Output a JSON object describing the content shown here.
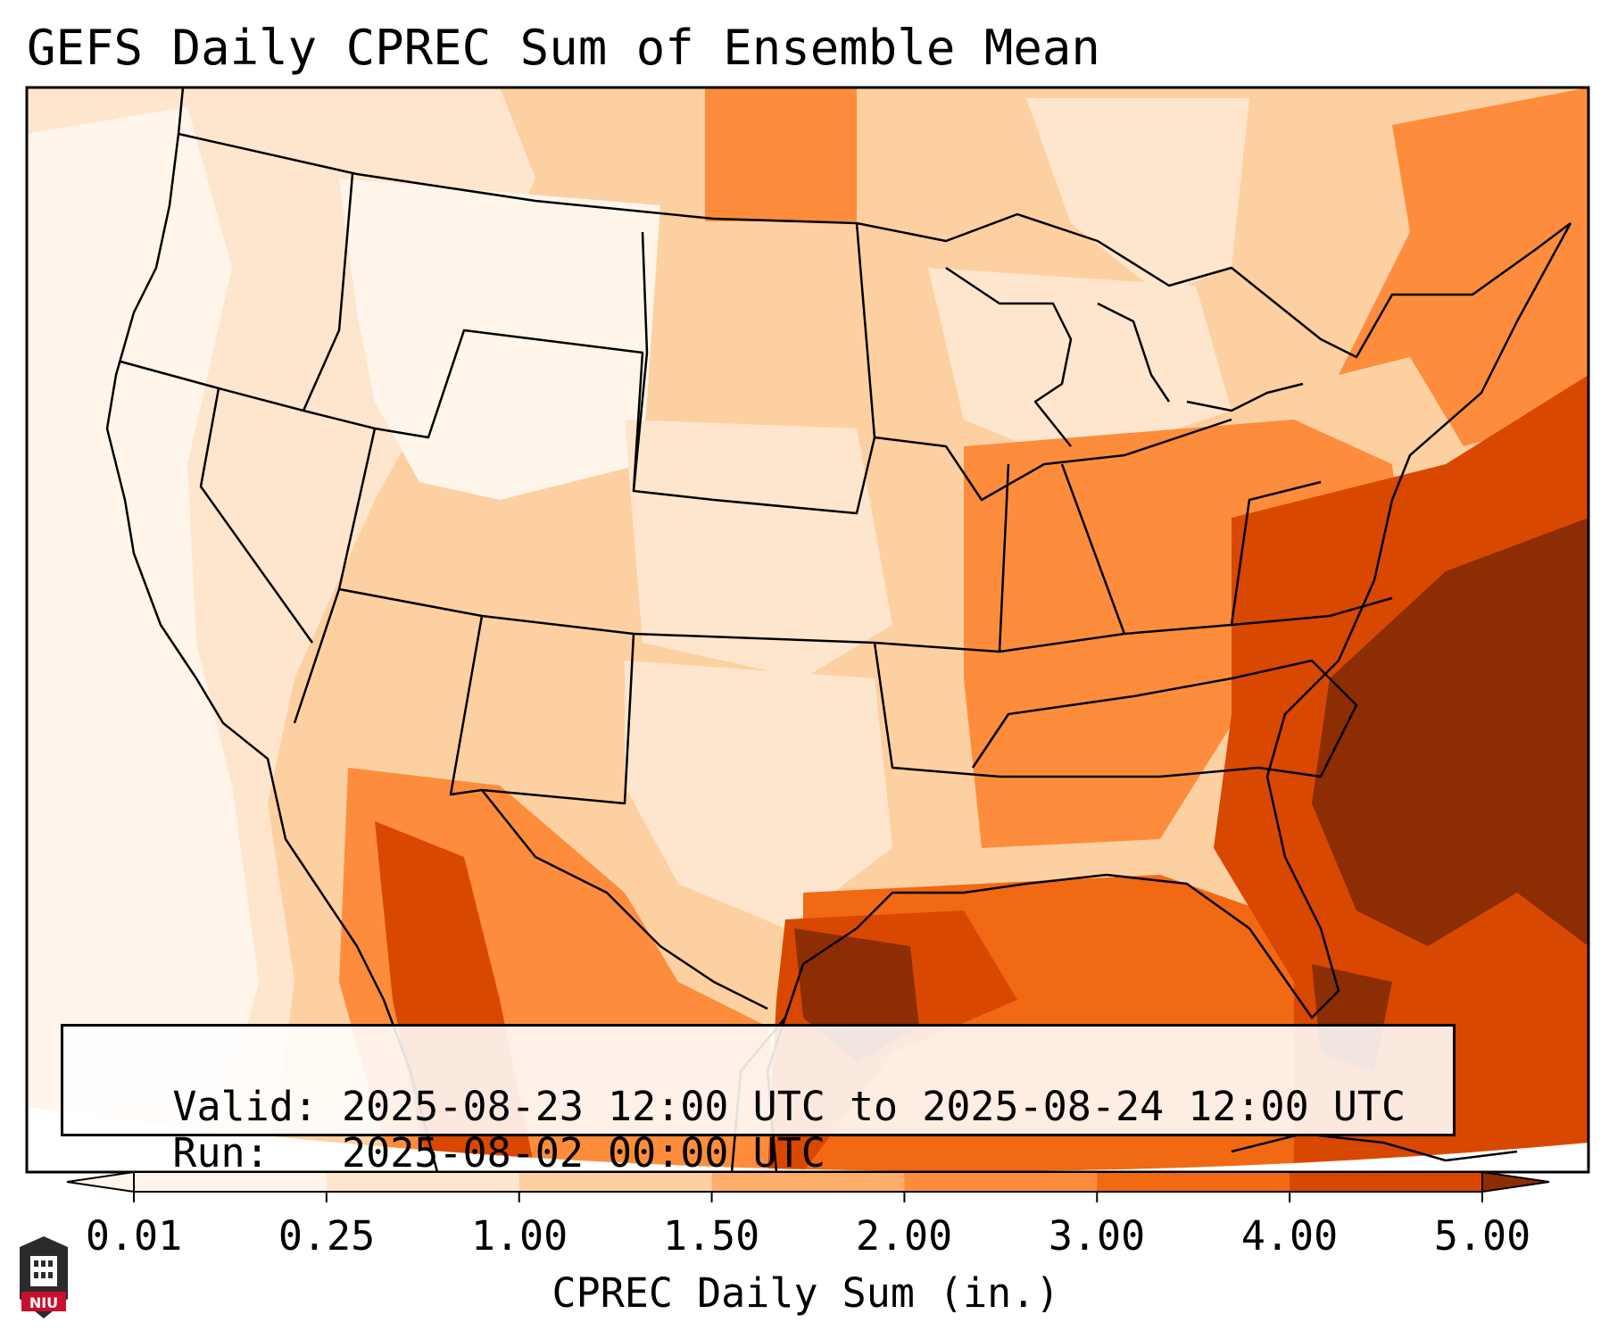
{
  "title": "GEFS Daily CPREC Sum of Ensemble Mean",
  "info_box": {
    "valid_label": "Valid:",
    "valid_range": "2025-08-23 12:00 UTC to 2025-08-24 12:00 UTC",
    "run_label": "Run:",
    "run_time": "2025-08-02 00:00 UTC"
  },
  "colorbar": {
    "label": "CPREC Daily Sum (in.)",
    "ticks": [
      "0.01",
      "0.25",
      "1.00",
      "1.50",
      "2.00",
      "3.00",
      "4.00",
      "5.00"
    ],
    "colors": [
      "#fff5eb",
      "#fee6ce",
      "#fdd0a2",
      "#fdae6b",
      "#fd8d3c",
      "#f16913",
      "#d94801",
      "#8c2d04"
    ],
    "extend": "both"
  },
  "logo": {
    "text": "NIU",
    "color": "#c8102e"
  }
}
